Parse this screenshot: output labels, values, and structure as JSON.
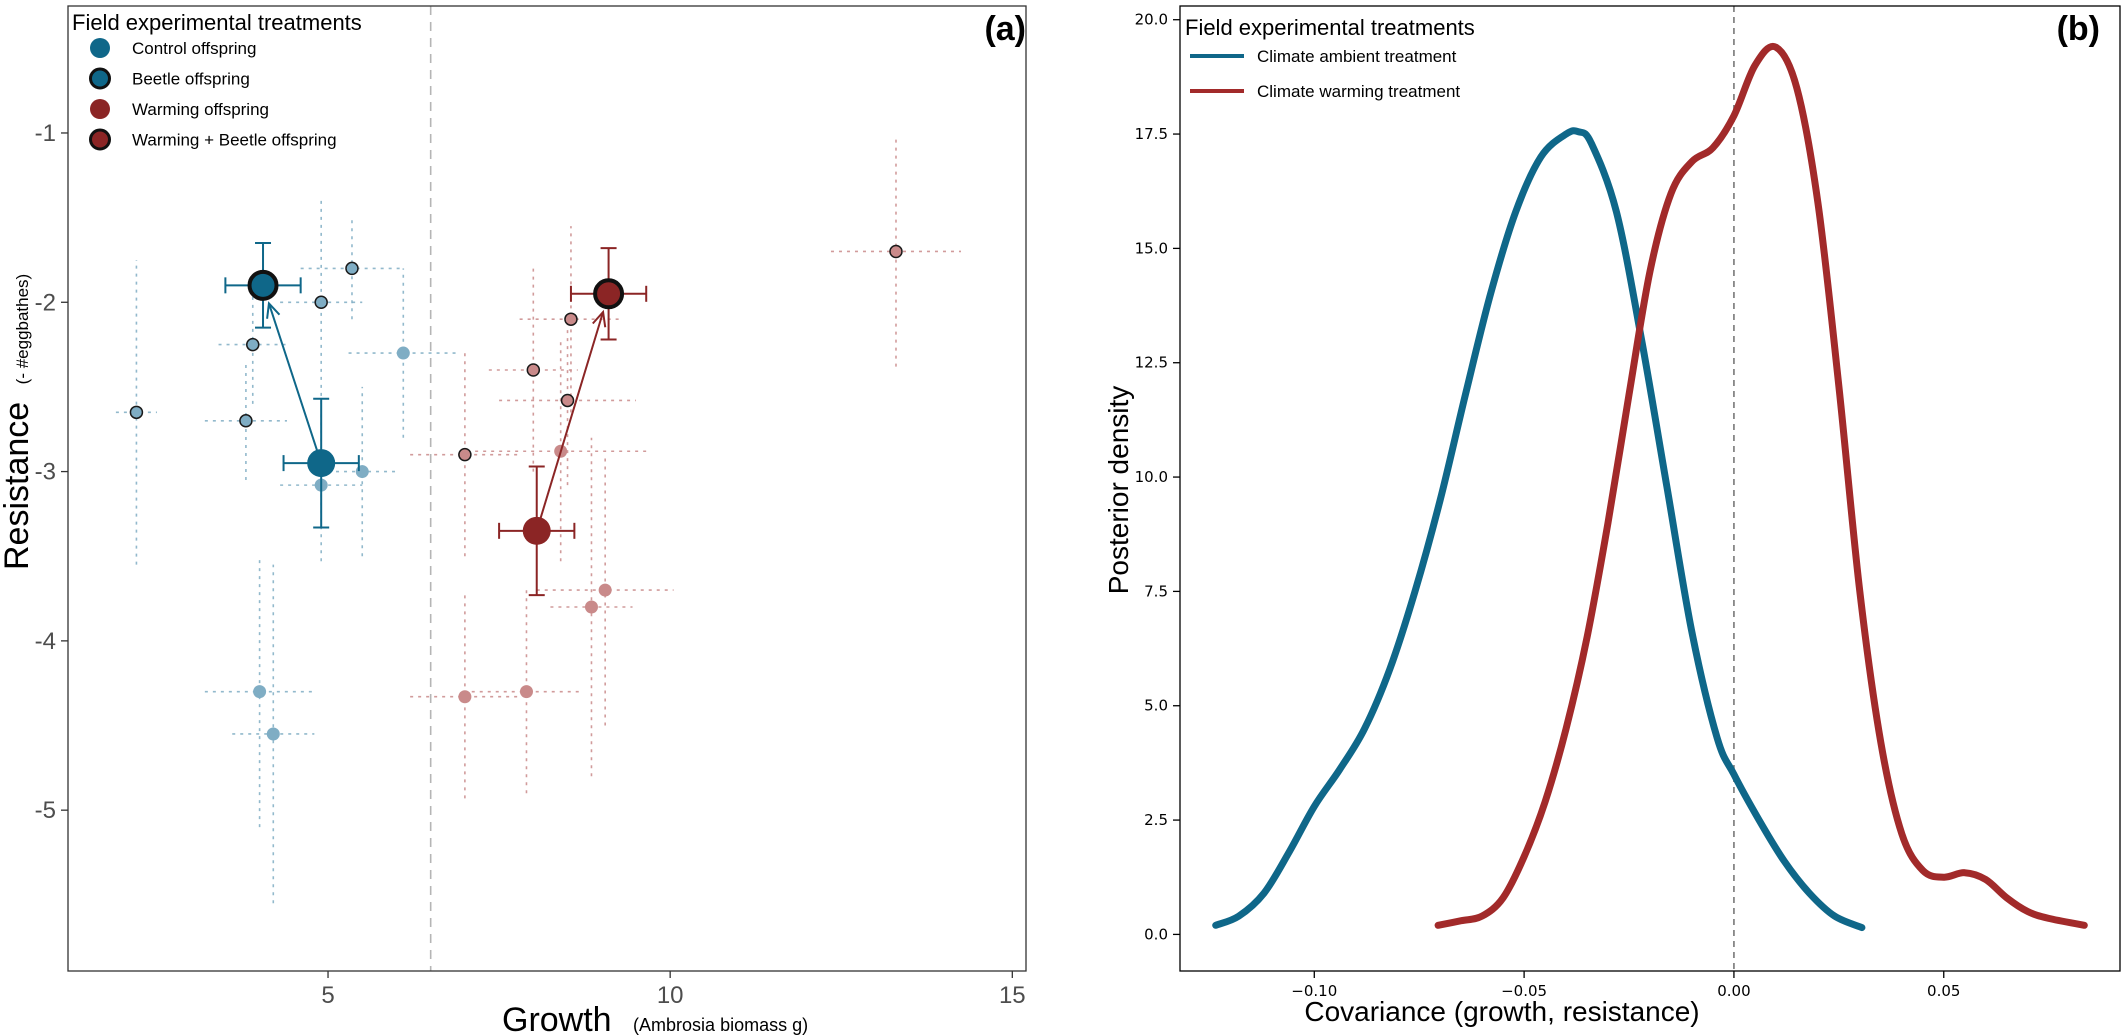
{
  "chart_data": [
    {
      "panel_label": "(a)",
      "type": "scatter",
      "xlabel": "Growth",
      "xlabel_sub": "(Ambrosia biomass g)",
      "ylabel": "Resistance",
      "ylabel_sub": "(- #eggbathes)",
      "xlim": [
        1.2,
        15.2
      ],
      "ylim": [
        -5.95,
        -0.25
      ],
      "xticks": [
        5,
        10,
        15
      ],
      "xtick_labels": [
        "5",
        "10",
        "15"
      ],
      "yticks": [
        -5,
        -4,
        -3,
        -2,
        -1
      ],
      "ytick_labels": [
        "-5",
        "-4",
        "-3",
        "-2",
        "-1"
      ],
      "vline_x": 6.5,
      "legend": {
        "title": "Field experimental treatments",
        "position": "top-left",
        "entries": [
          {
            "label": "Control offspring",
            "color": "#0f6789",
            "outlined": false
          },
          {
            "label": "Beetle offspring",
            "color": "#0f6789",
            "outlined": true
          },
          {
            "label": "Warming offspring",
            "color": "#8b2525",
            "outlined": false
          },
          {
            "label": "Warming + Beetle offspring",
            "color": "#8b2525",
            "outlined": true
          }
        ]
      },
      "series": [
        {
          "name": "Control offspring",
          "color": "#7fadc4",
          "points": [
            {
              "x": 4.9,
              "y": -3.08,
              "xerr": 0.6,
              "yerr": 0.45
            },
            {
              "x": 5.5,
              "y": -3.0,
              "xerr": 0.5,
              "yerr": 0.5
            },
            {
              "x": 6.1,
              "y": -2.3,
              "xerr": 0.8,
              "yerr": 0.5
            },
            {
              "x": 4.0,
              "y": -4.3,
              "xerr": 0.8,
              "yerr": 0.8
            },
            {
              "x": 4.2,
              "y": -4.55,
              "xerr": 0.6,
              "yerr": 1.0
            }
          ]
        },
        {
          "name": "Beetle offspring",
          "color": "#7fadc4",
          "points": [
            {
              "x": 2.2,
              "y": -2.65,
              "xerr": 0.3,
              "yerr": 0.9
            },
            {
              "x": 3.8,
              "y": -2.7,
              "xerr": 0.6,
              "yerr": 0.35
            },
            {
              "x": 3.9,
              "y": -2.25,
              "xerr": 0.5,
              "yerr": 0.35
            },
            {
              "x": 4.9,
              "y": -2.0,
              "xerr": 0.6,
              "yerr": 0.6
            },
            {
              "x": 5.35,
              "y": -1.8,
              "xerr": 0.75,
              "yerr": 0.3
            }
          ]
        },
        {
          "name": "Warming offspring",
          "color": "#c98a8a",
          "points": [
            {
              "x": 8.4,
              "y": -2.88,
              "xerr": 1.25,
              "yerr": 0.65
            },
            {
              "x": 9.05,
              "y": -3.7,
              "xerr": 1.0,
              "yerr": 0.8
            },
            {
              "x": 8.85,
              "y": -3.8,
              "xerr": 0.6,
              "yerr": 1.0
            },
            {
              "x": 7.0,
              "y": -4.33,
              "xerr": 0.8,
              "yerr": 0.6
            },
            {
              "x": 7.9,
              "y": -4.3,
              "xerr": 0.8,
              "yerr": 0.6
            }
          ]
        },
        {
          "name": "Warming + Beetle offspring",
          "color": "#c98a8a",
          "points": [
            {
              "x": 7.0,
              "y": -2.9,
              "xerr": 0.8,
              "yerr": 0.6
            },
            {
              "x": 8.0,
              "y": -2.4,
              "xerr": 0.65,
              "yerr": 0.6
            },
            {
              "x": 8.5,
              "y": -2.58,
              "xerr": 1.0,
              "yerr": 0.5
            },
            {
              "x": 8.55,
              "y": -2.1,
              "xerr": 0.75,
              "yerr": 0.55
            },
            {
              "x": 13.3,
              "y": -1.7,
              "xerr": 0.95,
              "yerr": 0.68
            }
          ]
        }
      ],
      "means": [
        {
          "name": "Control offspring",
          "x": 4.9,
          "y": -2.95,
          "xerr": 0.55,
          "yerr": 0.38,
          "color": "#0f6789",
          "outlined": false
        },
        {
          "name": "Beetle offspring",
          "x": 4.05,
          "y": -1.9,
          "xerr": 0.55,
          "yerr": 0.25,
          "color": "#0f6789",
          "outlined": true
        },
        {
          "name": "Warming offspring",
          "x": 8.05,
          "y": -3.35,
          "xerr": 0.55,
          "yerr": 0.38,
          "color": "#8b2525",
          "outlined": false
        },
        {
          "name": "Warming + Beetle offspring",
          "x": 9.1,
          "y": -1.95,
          "xerr": 0.55,
          "yerr": 0.27,
          "color": "#8b2525",
          "outlined": true
        }
      ],
      "arrows": [
        {
          "from": [
            4.9,
            -2.95
          ],
          "to": [
            4.05,
            -1.9
          ],
          "color": "#0f6789"
        },
        {
          "from": [
            8.05,
            -3.35
          ],
          "to": [
            9.1,
            -1.95
          ],
          "color": "#8b2525"
        }
      ]
    },
    {
      "panel_label": "(b)",
      "type": "line",
      "xlabel": "Covariance (growth, resistance)",
      "ylabel": "Posterior density",
      "xlim": [
        -0.132,
        0.092
      ],
      "ylim": [
        -0.8,
        20.3
      ],
      "xticks": [
        -0.1,
        -0.05,
        0.0,
        0.05
      ],
      "xtick_labels": [
        "−0.10",
        "−0.05",
        "0.00",
        "0.05"
      ],
      "yticks": [
        0,
        2.5,
        5,
        7.5,
        10,
        12.5,
        15,
        17.5,
        20
      ],
      "ytick_labels": [
        "0.0",
        "2.5",
        "5.0",
        "7.5",
        "10.0",
        "12.5",
        "15.0",
        "17.5",
        "20.0"
      ],
      "vline_x": 0.0,
      "legend": {
        "title": "Field experimental treatments",
        "position": "top-left",
        "entries": [
          {
            "label": "Climate ambient treatment",
            "color": "#0f6789"
          },
          {
            "label": "Climate warming treatment",
            "color": "#a22a2a"
          }
        ]
      },
      "series": [
        {
          "name": "Climate ambient treatment",
          "color": "#0f6789",
          "x": [
            -0.1235,
            -0.118,
            -0.112,
            -0.106,
            -0.1,
            -0.094,
            -0.088,
            -0.082,
            -0.076,
            -0.07,
            -0.064,
            -0.058,
            -0.052,
            -0.046,
            -0.04,
            -0.037,
            -0.034,
            -0.028,
            -0.022,
            -0.016,
            -0.01,
            -0.004,
            0.0,
            0.006,
            0.012,
            0.018,
            0.024,
            0.0305
          ],
          "y": [
            0.2,
            0.4,
            0.9,
            1.8,
            2.8,
            3.6,
            4.5,
            5.8,
            7.5,
            9.5,
            11.8,
            14.0,
            15.8,
            17.0,
            17.5,
            17.55,
            17.3,
            15.8,
            13.0,
            9.8,
            6.6,
            4.3,
            3.5,
            2.5,
            1.6,
            0.9,
            0.4,
            0.15
          ]
        },
        {
          "name": "Climate warming treatment",
          "color": "#a22a2a",
          "x": [
            -0.0705,
            -0.065,
            -0.06,
            -0.055,
            -0.05,
            -0.045,
            -0.04,
            -0.035,
            -0.03,
            -0.025,
            -0.02,
            -0.015,
            -0.01,
            -0.005,
            0.0,
            0.005,
            0.01,
            0.015,
            0.02,
            0.025,
            0.03,
            0.035,
            0.04,
            0.045,
            0.05,
            0.055,
            0.06,
            0.065,
            0.07,
            0.075,
            0.0835
          ],
          "y": [
            0.2,
            0.3,
            0.4,
            0.8,
            1.7,
            2.9,
            4.5,
            6.5,
            9.0,
            11.8,
            14.5,
            16.2,
            16.9,
            17.2,
            17.9,
            19.0,
            19.4,
            18.5,
            16.0,
            12.0,
            7.5,
            4.2,
            2.2,
            1.4,
            1.25,
            1.35,
            1.2,
            0.8,
            0.5,
            0.35,
            0.2
          ]
        }
      ]
    }
  ]
}
